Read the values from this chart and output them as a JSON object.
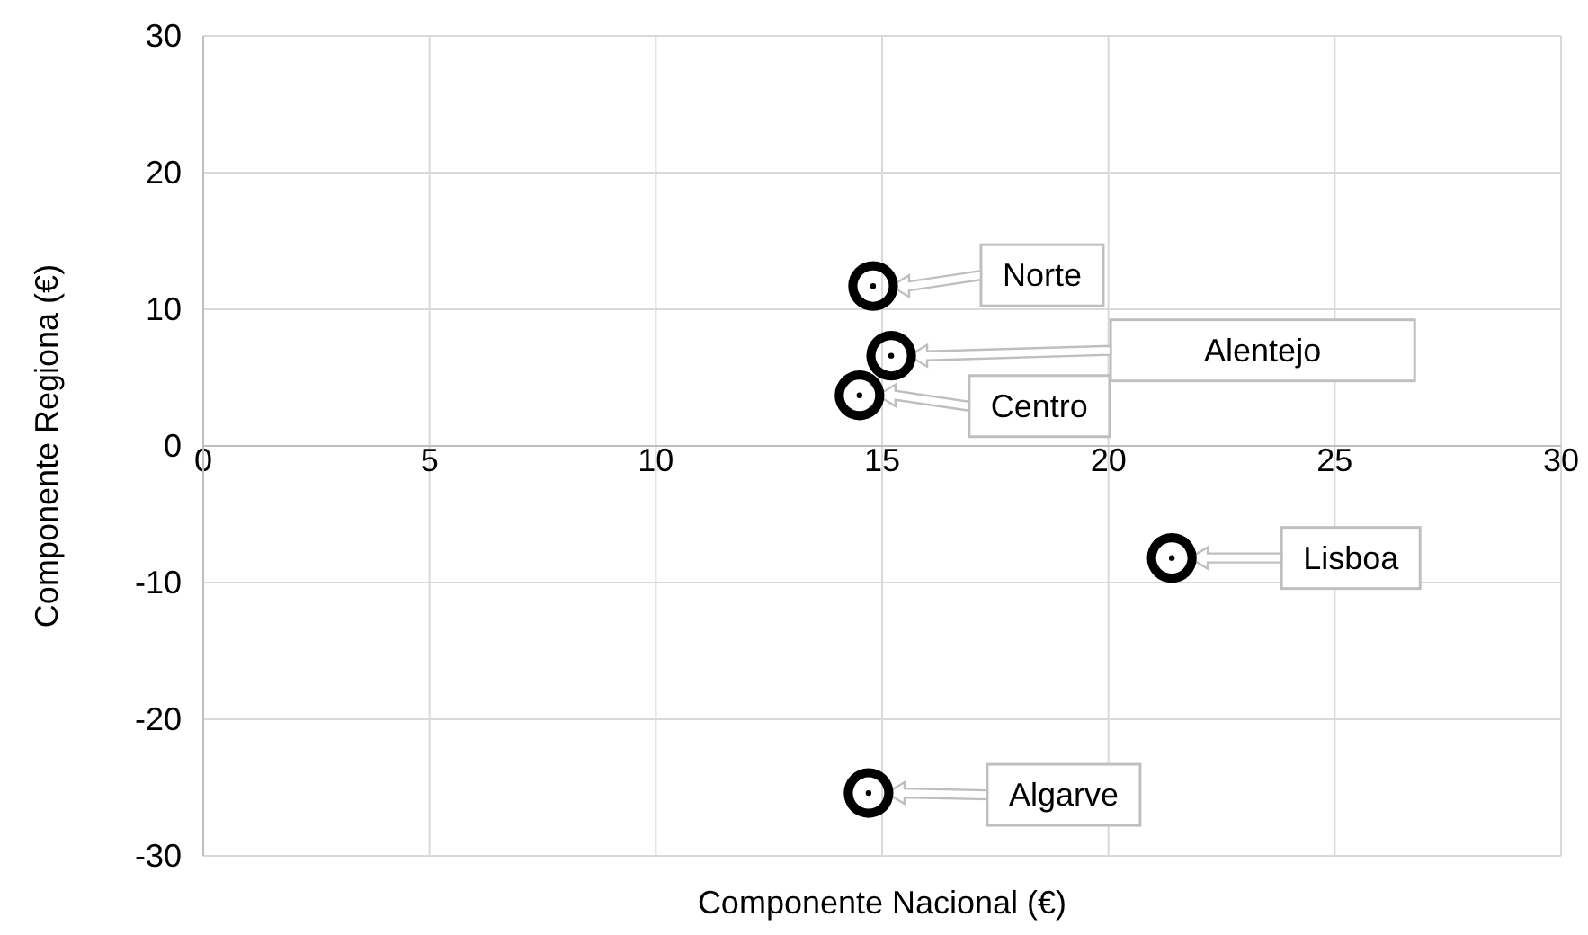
{
  "chart_data": {
    "type": "scatter",
    "xlabel": "Componente Nacional (€)",
    "ylabel": "Componente Regiona (€)",
    "x": [
      14.8,
      15.2,
      14.5,
      21.4,
      14.7
    ],
    "values": [
      11.7,
      6.6,
      3.7,
      -8.2,
      -25.4
    ],
    "color": "#000000",
    "marker": "circle",
    "grid": true,
    "xlim": [
      0,
      30
    ],
    "xticks": [
      0,
      5,
      10,
      15,
      20,
      25,
      30
    ],
    "ylim": [
      -30,
      30
    ],
    "yticks": [
      -30,
      -20,
      -10,
      0,
      10,
      20,
      30
    ],
    "annotations": [
      "Norte",
      "Alentejo",
      "Centro",
      "Lisboa",
      "Algarve"
    ]
  }
}
